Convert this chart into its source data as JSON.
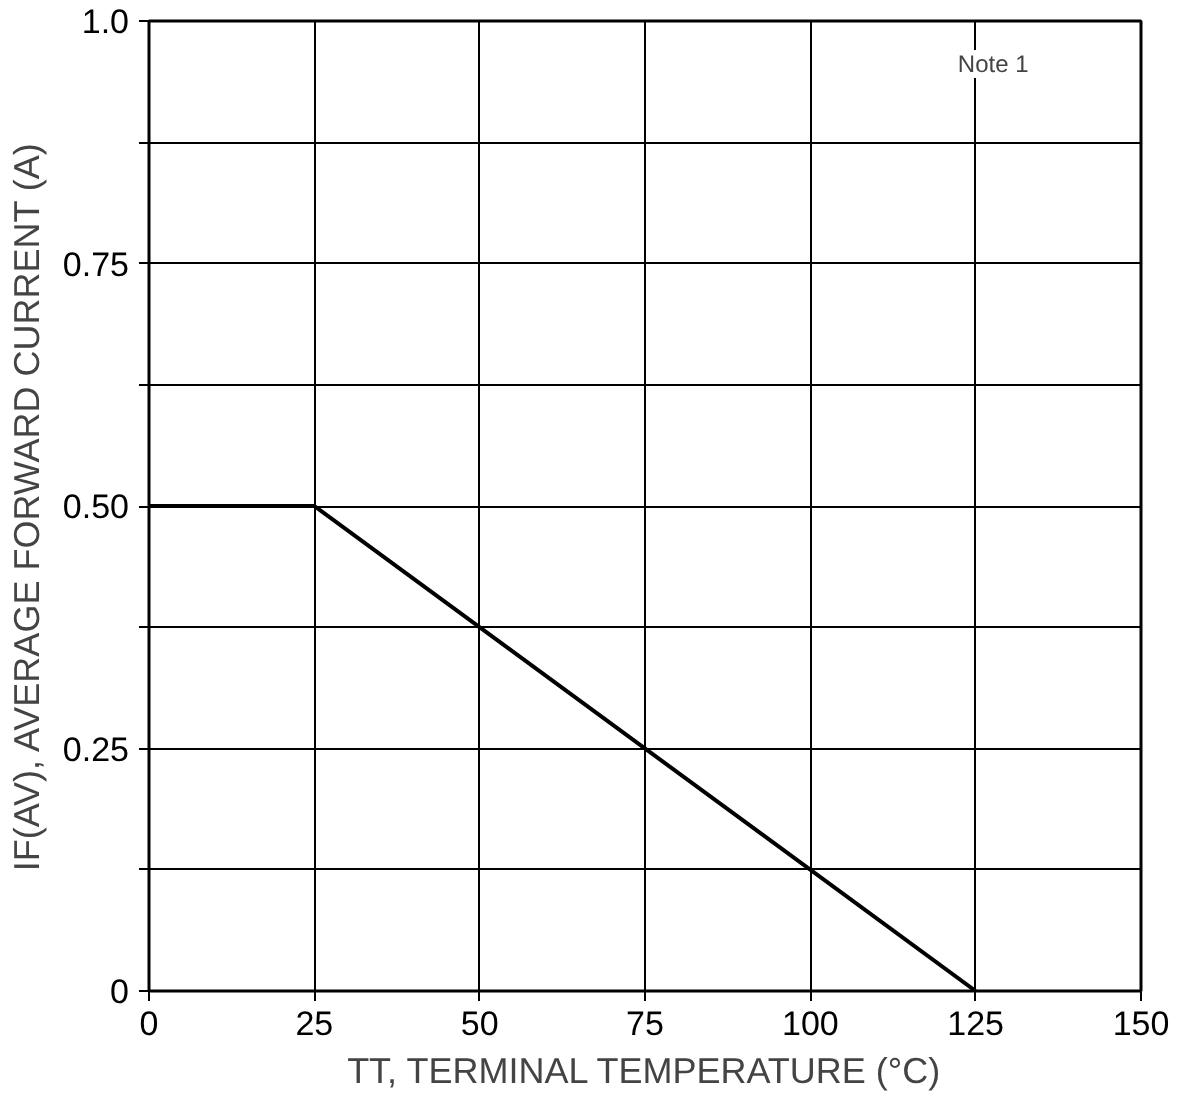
{
  "chart_data": {
    "type": "line",
    "xlabel": "TT, TERMINAL TEMPERATURE (°C)",
    "ylabel": "IF(AV), AVERAGE FORWARD CURRENT (A)",
    "x": [
      0,
      25,
      125
    ],
    "series": [
      {
        "color": "#000000",
        "values": [
          0.5,
          0.5,
          0
        ]
      }
    ],
    "xlim": [
      0,
      150
    ],
    "ylim": [
      0,
      1.0
    ],
    "xticks": [
      0,
      25,
      50,
      75,
      100,
      125,
      150
    ],
    "yticks": [
      {
        "value": 0,
        "label": "0"
      },
      {
        "value": 0.125,
        "label": null
      },
      {
        "value": 0.25,
        "label": "0.25"
      },
      {
        "value": 0.375,
        "label": null
      },
      {
        "value": 0.5,
        "label": "0.50"
      },
      {
        "value": 0.625,
        "label": null
      },
      {
        "value": 0.75,
        "label": "0.75"
      },
      {
        "value": 0.875,
        "label": null
      },
      {
        "value": 1.0,
        "label": "1.0"
      }
    ],
    "grid": true,
    "marker": "none",
    "line_style": "solid",
    "annotations": [
      "Note 1"
    ]
  }
}
